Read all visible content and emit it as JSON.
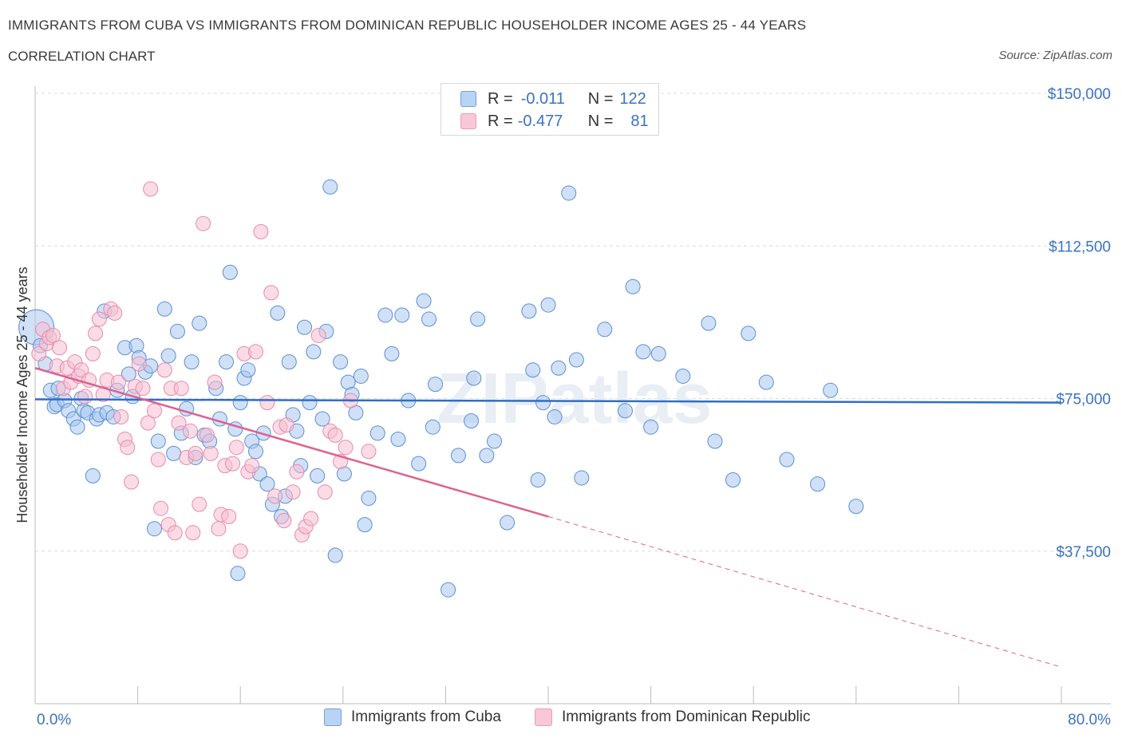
{
  "title": "IMMIGRANTS FROM CUBA VS IMMIGRANTS FROM DOMINICAN REPUBLIC HOUSEHOLDER INCOME AGES 25 - 44 YEARS",
  "subtitle": "CORRELATION CHART",
  "source": "Source: ZipAtlas.com",
  "watermark": "ZIPatlas",
  "legend": {
    "r_label": "R =",
    "n_label": "N =",
    "cuba": {
      "r": "-0.011",
      "n": "122"
    },
    "dominican": {
      "r": "-0.477",
      "n": "81"
    }
  },
  "bottom_legend": {
    "cuba_label": "Immigrants from Cuba",
    "dominican_label": "Immigrants from Dominican Republic"
  },
  "colors": {
    "cuba_fill": "#a9c8f0",
    "cuba_stroke": "#5b8fd6",
    "cuba_line": "#2e6ec8",
    "dominican_fill": "#f7bfd1",
    "dominican_stroke": "#e88aab",
    "dominican_line": "#e0608f",
    "axis_text": "#3a73c4",
    "grid": "#dcdcdc"
  },
  "chart_data": {
    "type": "scatter",
    "title": "IMMIGRANTS FROM CUBA VS IMMIGRANTS FROM DOMINICAN REPUBLIC HOUSEHOLDER INCOME AGES 25 - 44 YEARS",
    "xlabel": "",
    "ylabel": "Householder Income Ages 25 - 44 years",
    "xlim": [
      0,
      80
    ],
    "ylim": [
      0,
      150000
    ],
    "x_tick_labels": [
      "0.0%",
      "80.0%"
    ],
    "y_ticks": [
      37500,
      75000,
      112500,
      150000
    ],
    "y_tick_labels": [
      "$37,500",
      "$75,000",
      "$112,500",
      "$150,000"
    ],
    "grid": "horizontal dashed",
    "legend_position": "top-center",
    "series": [
      {
        "name": "Immigrants from Cuba",
        "trend": {
          "x": [
            0,
            80
          ],
          "y": [
            74800,
            74000
          ],
          "style": "solid"
        },
        "points": [
          [
            0.1,
            92500
          ],
          [
            0.4,
            88000
          ],
          [
            0.8,
            83500
          ],
          [
            1.2,
            77000
          ],
          [
            1.5,
            73000
          ],
          [
            1.7,
            73500
          ],
          [
            1.8,
            77500
          ],
          [
            2.3,
            74500
          ],
          [
            2.6,
            72000
          ],
          [
            3.0,
            70000
          ],
          [
            3.3,
            68000
          ],
          [
            3.6,
            75000
          ],
          [
            3.8,
            72000
          ],
          [
            4.1,
            71500
          ],
          [
            4.5,
            56000
          ],
          [
            4.8,
            70000
          ],
          [
            5.0,
            71000
          ],
          [
            5.4,
            96500
          ],
          [
            5.6,
            71500
          ],
          [
            6.1,
            70500
          ],
          [
            6.4,
            77000
          ],
          [
            7.0,
            87500
          ],
          [
            7.3,
            81000
          ],
          [
            7.6,
            75500
          ],
          [
            7.9,
            88000
          ],
          [
            8.1,
            85000
          ],
          [
            8.6,
            81500
          ],
          [
            9.0,
            83000
          ],
          [
            9.3,
            43000
          ],
          [
            9.6,
            64500
          ],
          [
            10.1,
            97000
          ],
          [
            10.4,
            85500
          ],
          [
            10.8,
            61500
          ],
          [
            11.1,
            91500
          ],
          [
            11.4,
            66500
          ],
          [
            11.8,
            72500
          ],
          [
            12.2,
            84000
          ],
          [
            12.5,
            60500
          ],
          [
            12.8,
            93500
          ],
          [
            13.2,
            66000
          ],
          [
            13.6,
            64500
          ],
          [
            14.1,
            77500
          ],
          [
            14.4,
            70000
          ],
          [
            14.9,
            84000
          ],
          [
            15.2,
            106000
          ],
          [
            15.6,
            67500
          ],
          [
            15.8,
            32000
          ],
          [
            16.0,
            74000
          ],
          [
            16.3,
            80000
          ],
          [
            16.6,
            82000
          ],
          [
            16.9,
            64500
          ],
          [
            17.2,
            62000
          ],
          [
            17.5,
            56500
          ],
          [
            17.8,
            66500
          ],
          [
            18.1,
            54000
          ],
          [
            18.5,
            49000
          ],
          [
            18.9,
            96000
          ],
          [
            19.2,
            46000
          ],
          [
            19.5,
            51000
          ],
          [
            19.8,
            84000
          ],
          [
            20.1,
            71000
          ],
          [
            20.4,
            67000
          ],
          [
            20.7,
            58500
          ],
          [
            21.0,
            92500
          ],
          [
            21.4,
            74000
          ],
          [
            21.7,
            86500
          ],
          [
            22.0,
            56000
          ],
          [
            22.4,
            70000
          ],
          [
            22.7,
            91500
          ],
          [
            23.0,
            127000
          ],
          [
            23.4,
            36500
          ],
          [
            23.8,
            84000
          ],
          [
            24.1,
            56500
          ],
          [
            24.4,
            79000
          ],
          [
            24.7,
            76000
          ],
          [
            25.0,
            71500
          ],
          [
            25.4,
            80500
          ],
          [
            25.7,
            44000
          ],
          [
            26.0,
            50500
          ],
          [
            26.7,
            66500
          ],
          [
            27.3,
            95500
          ],
          [
            27.8,
            86000
          ],
          [
            28.3,
            65000
          ],
          [
            28.6,
            95500
          ],
          [
            29.1,
            74500
          ],
          [
            29.9,
            59000
          ],
          [
            30.3,
            99000
          ],
          [
            30.7,
            94500
          ],
          [
            31.0,
            68000
          ],
          [
            31.2,
            78500
          ],
          [
            32.2,
            28000
          ],
          [
            33.0,
            61000
          ],
          [
            34.0,
            69500
          ],
          [
            34.2,
            80000
          ],
          [
            34.5,
            94500
          ],
          [
            35.2,
            61000
          ],
          [
            35.8,
            64500
          ],
          [
            36.8,
            44500
          ],
          [
            38.5,
            96500
          ],
          [
            38.8,
            82000
          ],
          [
            39.2,
            55000
          ],
          [
            39.6,
            74000
          ],
          [
            40.0,
            98000
          ],
          [
            40.5,
            70500
          ],
          [
            40.8,
            82500
          ],
          [
            41.6,
            125500
          ],
          [
            42.2,
            84500
          ],
          [
            42.6,
            55500
          ],
          [
            44.4,
            92000
          ],
          [
            46.0,
            72000
          ],
          [
            46.6,
            102500
          ],
          [
            47.4,
            86500
          ],
          [
            48.0,
            68000
          ],
          [
            48.6,
            86000
          ],
          [
            50.5,
            80500
          ],
          [
            52.5,
            93500
          ],
          [
            53.0,
            64500
          ],
          [
            54.4,
            55000
          ],
          [
            55.6,
            91000
          ],
          [
            57.0,
            79000
          ],
          [
            58.6,
            60000
          ],
          [
            61.0,
            54000
          ],
          [
            62.0,
            77000
          ],
          [
            64.0,
            48500
          ]
        ]
      },
      {
        "name": "Immigrants from Dominican Republic",
        "trend": {
          "x": [
            0,
            40
          ],
          "y": [
            82500,
            46000
          ],
          "style": "solid",
          "extension": {
            "x": [
              40,
              80
            ],
            "y": [
              46000,
              9000
            ],
            "style": "dashed"
          }
        },
        "points": [
          [
            0.3,
            86000
          ],
          [
            0.6,
            92000
          ],
          [
            0.9,
            88500
          ],
          [
            1.1,
            90000
          ],
          [
            1.4,
            90500
          ],
          [
            1.7,
            83000
          ],
          [
            1.9,
            87500
          ],
          [
            2.2,
            77500
          ],
          [
            2.5,
            82500
          ],
          [
            2.8,
            79000
          ],
          [
            3.1,
            84000
          ],
          [
            3.4,
            80500
          ],
          [
            3.6,
            82000
          ],
          [
            3.9,
            75500
          ],
          [
            4.2,
            79500
          ],
          [
            4.5,
            86000
          ],
          [
            4.7,
            91000
          ],
          [
            5.0,
            94500
          ],
          [
            5.3,
            76000
          ],
          [
            5.6,
            79500
          ],
          [
            5.9,
            97000
          ],
          [
            6.2,
            96000
          ],
          [
            6.5,
            79000
          ],
          [
            6.7,
            70500
          ],
          [
            7.0,
            65000
          ],
          [
            7.2,
            63000
          ],
          [
            7.5,
            54500
          ],
          [
            7.8,
            78000
          ],
          [
            8.1,
            83500
          ],
          [
            8.4,
            77500
          ],
          [
            8.8,
            69000
          ],
          [
            9.0,
            126500
          ],
          [
            9.3,
            72000
          ],
          [
            9.6,
            60000
          ],
          [
            9.8,
            48000
          ],
          [
            10.1,
            82000
          ],
          [
            10.4,
            44000
          ],
          [
            10.6,
            77500
          ],
          [
            10.9,
            42000
          ],
          [
            11.2,
            69000
          ],
          [
            11.4,
            77500
          ],
          [
            11.8,
            60500
          ],
          [
            12.1,
            67000
          ],
          [
            12.3,
            42000
          ],
          [
            12.5,
            61500
          ],
          [
            12.8,
            49000
          ],
          [
            13.1,
            118000
          ],
          [
            13.4,
            66000
          ],
          [
            13.7,
            61500
          ],
          [
            14.0,
            79000
          ],
          [
            14.3,
            43000
          ],
          [
            14.5,
            46500
          ],
          [
            14.8,
            58500
          ],
          [
            15.1,
            46000
          ],
          [
            15.4,
            59000
          ],
          [
            15.7,
            63000
          ],
          [
            16.0,
            37500
          ],
          [
            16.3,
            86000
          ],
          [
            16.6,
            57000
          ],
          [
            16.9,
            58500
          ],
          [
            17.2,
            86500
          ],
          [
            17.6,
            116000
          ],
          [
            18.1,
            74000
          ],
          [
            18.4,
            101000
          ],
          [
            18.7,
            51000
          ],
          [
            19.1,
            68000
          ],
          [
            19.4,
            45000
          ],
          [
            19.6,
            68500
          ],
          [
            20.1,
            52000
          ],
          [
            20.4,
            57000
          ],
          [
            20.8,
            41500
          ],
          [
            21.1,
            43500
          ],
          [
            21.5,
            45500
          ],
          [
            22.1,
            90500
          ],
          [
            22.6,
            52000
          ],
          [
            23.0,
            67000
          ],
          [
            23.4,
            66000
          ],
          [
            23.8,
            59500
          ],
          [
            24.2,
            63000
          ],
          [
            24.6,
            74500
          ],
          [
            26.0,
            62000
          ]
        ]
      }
    ]
  }
}
